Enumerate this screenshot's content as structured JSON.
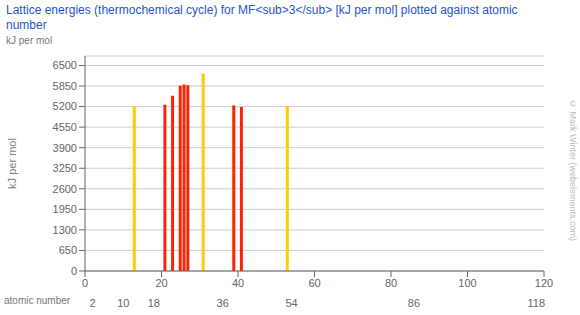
{
  "chart_data": {
    "type": "bar",
    "title": "Lattice energies (thermochemical cycle) for MF<sub>3</sub> [kJ per mol] plotted against atomic number",
    "ylabel": "kJ per mol",
    "x": [
      13,
      21,
      23,
      25,
      26,
      27,
      31,
      39,
      41,
      53
    ],
    "values": [
      5215,
      5258,
      5544,
      5861,
      5897,
      5877,
      6244,
      5237,
      5188,
      5218
    ],
    "colors": [
      "#ffcc00",
      "#ff2200",
      "#ff2200",
      "#ff2200",
      "#ff2200",
      "#ff2200",
      "#ffcc00",
      "#ff2200",
      "#ff2200",
      "#ffcc00"
    ],
    "xlim": [
      0,
      120
    ],
    "xticks": [
      0,
      20,
      40,
      60,
      80,
      100,
      120
    ],
    "ylim": [
      0,
      6800
    ],
    "yticks": [
      0,
      650,
      1300,
      1950,
      2600,
      3250,
      3900,
      4550,
      5200,
      5850,
      6500
    ],
    "grid": true,
    "annotations": [
      {
        "text": "kJ per mol"
      },
      {
        "text": "atomic number"
      },
      {
        "text": "© Mark Winter (webelements.com)"
      },
      {
        "text": "2",
        "x": 2
      },
      {
        "text": "10",
        "x": 10
      },
      {
        "text": "18",
        "x": 18
      },
      {
        "text": "36",
        "x": 36
      },
      {
        "text": "54",
        "x": 54
      },
      {
        "text": "86",
        "x": 86
      },
      {
        "text": "118",
        "x": 118
      }
    ]
  }
}
